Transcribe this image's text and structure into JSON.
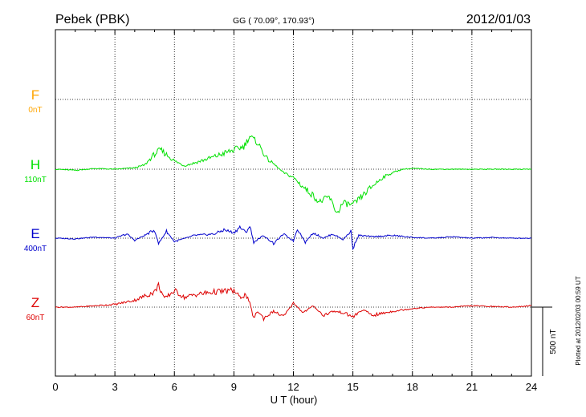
{
  "header": {
    "station": "Pebek (PBK)",
    "coords": "GG ( 70.09°, 170.93°)",
    "date": "2012/01/03"
  },
  "plotted_note": "Plotted at 2012/02/03 00:59 UT",
  "scale_label": "500 nT",
  "chart_data": {
    "type": "line",
    "xlabel": "U T (hour)",
    "xlim": [
      0,
      24
    ],
    "xticks": [
      0,
      3,
      6,
      9,
      12,
      15,
      18,
      21,
      24
    ],
    "scale_bar_nT": 500,
    "grid": true,
    "series": [
      {
        "name": "F",
        "offset_label": "0nT",
        "color": "#ffa500",
        "x": [],
        "y": []
      },
      {
        "name": "H",
        "offset_label": "110nT",
        "color": "#00e000",
        "x": [
          0,
          1,
          2,
          3,
          4,
          4.5,
          5,
          5.3,
          6,
          6.5,
          7,
          8,
          9,
          9.5,
          9.8,
          10.2,
          10.7,
          11,
          11.5,
          12,
          12.5,
          13,
          13.3,
          13.8,
          14.2,
          14.5,
          15,
          15.5,
          16,
          16.5,
          17,
          17.5,
          18,
          19,
          20,
          21,
          22,
          23,
          24
        ],
        "y": [
          0,
          -8,
          5,
          0,
          10,
          30,
          110,
          140,
          60,
          25,
          45,
          90,
          140,
          165,
          240,
          190,
          70,
          40,
          -25,
          -60,
          -130,
          -190,
          -240,
          -200,
          -320,
          -245,
          -260,
          -190,
          -120,
          -60,
          -25,
          0,
          5,
          0,
          0,
          0,
          0,
          0,
          0
        ]
      },
      {
        "name": "E",
        "offset_label": "400nT",
        "color": "#0000cc",
        "x": [
          0,
          1,
          2,
          3,
          3.6,
          4,
          4.5,
          5,
          5.2,
          5.6,
          6,
          7,
          8,
          8.5,
          9,
          9.3,
          9.6,
          9.8,
          10,
          10.5,
          11,
          11.5,
          12,
          12.2,
          12.6,
          13,
          13.5,
          14,
          14.5,
          14.9,
          15,
          15.3,
          16,
          17,
          18,
          19,
          20,
          21,
          22,
          23,
          24
        ],
        "y": [
          0,
          -5,
          8,
          0,
          30,
          -15,
          20,
          60,
          -40,
          50,
          -25,
          20,
          30,
          60,
          40,
          80,
          40,
          90,
          -30,
          20,
          -40,
          30,
          -20,
          70,
          -30,
          40,
          0,
          30,
          -10,
          50,
          -70,
          20,
          10,
          20,
          5,
          0,
          10,
          0,
          5,
          0,
          0
        ]
      },
      {
        "name": "Z",
        "offset_label": "60nT",
        "color": "#dd0000",
        "x": [
          0,
          1,
          2,
          3,
          4,
          4.5,
          5,
          5.2,
          5.5,
          6,
          6.5,
          7,
          8,
          9,
          9.3,
          9.6,
          9.8,
          10,
          10.2,
          10.5,
          11,
          11.5,
          12,
          12.5,
          13,
          13.5,
          14,
          14.5,
          15,
          15.5,
          16,
          17,
          18,
          19,
          20,
          21,
          22,
          23,
          24
        ],
        "y": [
          0,
          0,
          10,
          20,
          50,
          80,
          110,
          160,
          60,
          120,
          70,
          90,
          110,
          120,
          70,
          90,
          30,
          -80,
          -30,
          -80,
          -30,
          -70,
          30,
          -40,
          10,
          -60,
          -30,
          -40,
          -70,
          -20,
          -60,
          -30,
          -10,
          0,
          0,
          10,
          5,
          0,
          10
        ]
      }
    ]
  }
}
